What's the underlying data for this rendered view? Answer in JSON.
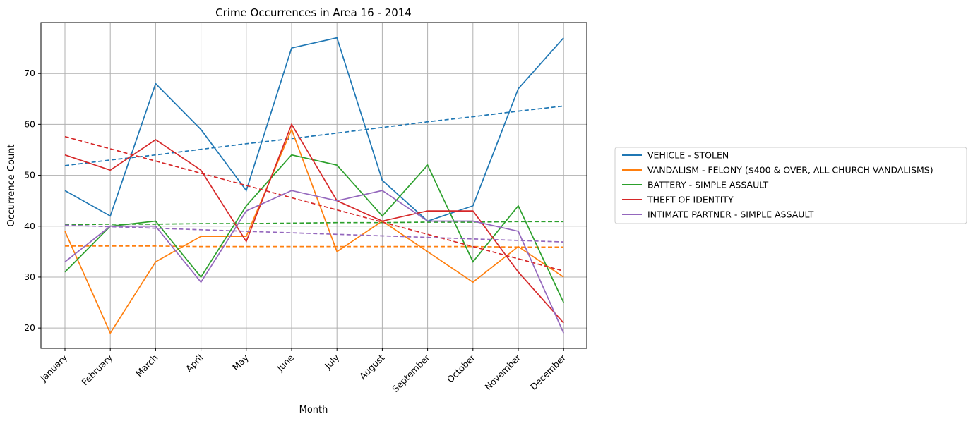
{
  "chart_data": {
    "type": "line",
    "title": "Crime Occurrences in Area 16 - 2014",
    "xlabel": "Month",
    "ylabel": "Occurrence Count",
    "categories": [
      "January",
      "February",
      "March",
      "April",
      "May",
      "June",
      "July",
      "August",
      "September",
      "October",
      "November",
      "December"
    ],
    "ylim": [
      16,
      80
    ],
    "yticks": [
      20,
      30,
      40,
      50,
      60,
      70
    ],
    "grid": true,
    "legend_position": "right",
    "series": [
      {
        "name": "VEHICLE - STOLEN",
        "color": "#1f77b4",
        "values": [
          47,
          42,
          68,
          59,
          47,
          75,
          77,
          49,
          41,
          44,
          67,
          77
        ],
        "trend": [
          51.9,
          53.0,
          54.0,
          55.1,
          56.2,
          57.2,
          58.3,
          59.4,
          60.5,
          61.5,
          62.6,
          63.6
        ]
      },
      {
        "name": "VANDALISM - FELONY ($400 & OVER, ALL CHURCH VANDALISMS)",
        "color": "#ff7f0e",
        "values": [
          39,
          19,
          33,
          38,
          38,
          59,
          35,
          41,
          35,
          29,
          36,
          30
        ],
        "trend": [
          36.1,
          36.1,
          36.1,
          36.0,
          36.0,
          36.0,
          36.0,
          36.0,
          36.0,
          36.0,
          35.9,
          35.9
        ]
      },
      {
        "name": "BATTERY - SIMPLE ASSAULT",
        "color": "#2ca02c",
        "values": [
          31,
          40,
          41,
          30,
          44,
          54,
          52,
          42,
          52,
          33,
          44,
          25
        ],
        "trend": [
          40.3,
          40.4,
          40.4,
          40.5,
          40.5,
          40.6,
          40.7,
          40.7,
          40.8,
          40.8,
          40.9,
          40.9
        ]
      },
      {
        "name": "THEFT OF IDENTITY",
        "color": "#d62728",
        "values": [
          54,
          51,
          57,
          51,
          37,
          60,
          45,
          41,
          43,
          43,
          31,
          21
        ],
        "trend": [
          57.6,
          55.2,
          52.8,
          50.4,
          48.0,
          45.6,
          43.2,
          40.8,
          38.4,
          36.0,
          33.6,
          31.2
        ]
      },
      {
        "name": "INTIMATE PARTNER - SIMPLE ASSAULT",
        "color": "#9467bd",
        "values": [
          33,
          40,
          40,
          29,
          43,
          47,
          45,
          47,
          41,
          41,
          39,
          19
        ],
        "trend": [
          40.2,
          39.9,
          39.6,
          39.3,
          39.0,
          38.7,
          38.4,
          38.1,
          37.8,
          37.5,
          37.2,
          36.9
        ]
      }
    ]
  }
}
